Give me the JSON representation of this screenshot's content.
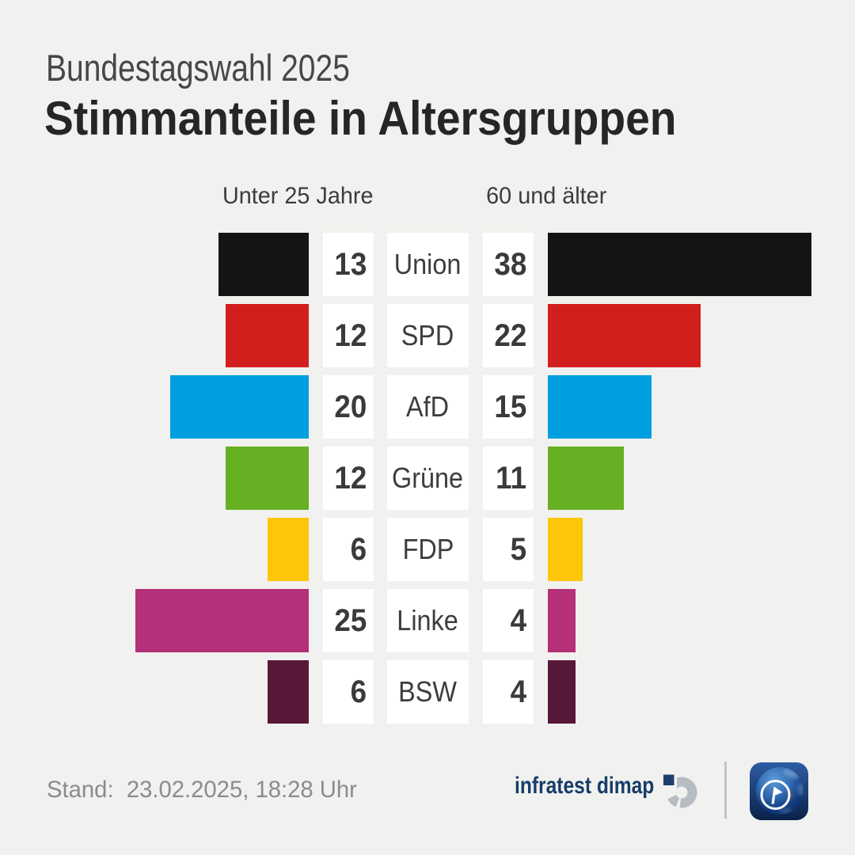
{
  "header": {
    "kicker": "Bundestagswahl 2025",
    "title": "Stimmanteile in Altersgruppen"
  },
  "chart_data": {
    "type": "bar",
    "title": "Stimmanteile in Altersgruppen",
    "subtitle": "Bundestagswahl 2025",
    "categories": [
      "Union",
      "SPD",
      "AfD",
      "Grüne",
      "FDP",
      "Linke",
      "BSW"
    ],
    "series": [
      {
        "name": "Unter 25 Jahre",
        "values": [
          13,
          12,
          20,
          12,
          6,
          25,
          6
        ]
      },
      {
        "name": "60 und älter",
        "values": [
          38,
          22,
          15,
          11,
          5,
          4,
          4
        ]
      }
    ],
    "colors": [
      "#141414",
      "#d21f1e",
      "#009fe0",
      "#68b023",
      "#fdc609",
      "#b43078",
      "#571738"
    ],
    "layout": "diverging-bars-center-labels",
    "unit": "percent"
  },
  "footer": {
    "stand": "Stand:  23.02.2025, 18:28 Uhr",
    "brand": "infratest dimap"
  },
  "icons": {
    "brand_mark": "infratest-dimap-mark",
    "ard_logo": "ard-tagesschau-globe"
  }
}
